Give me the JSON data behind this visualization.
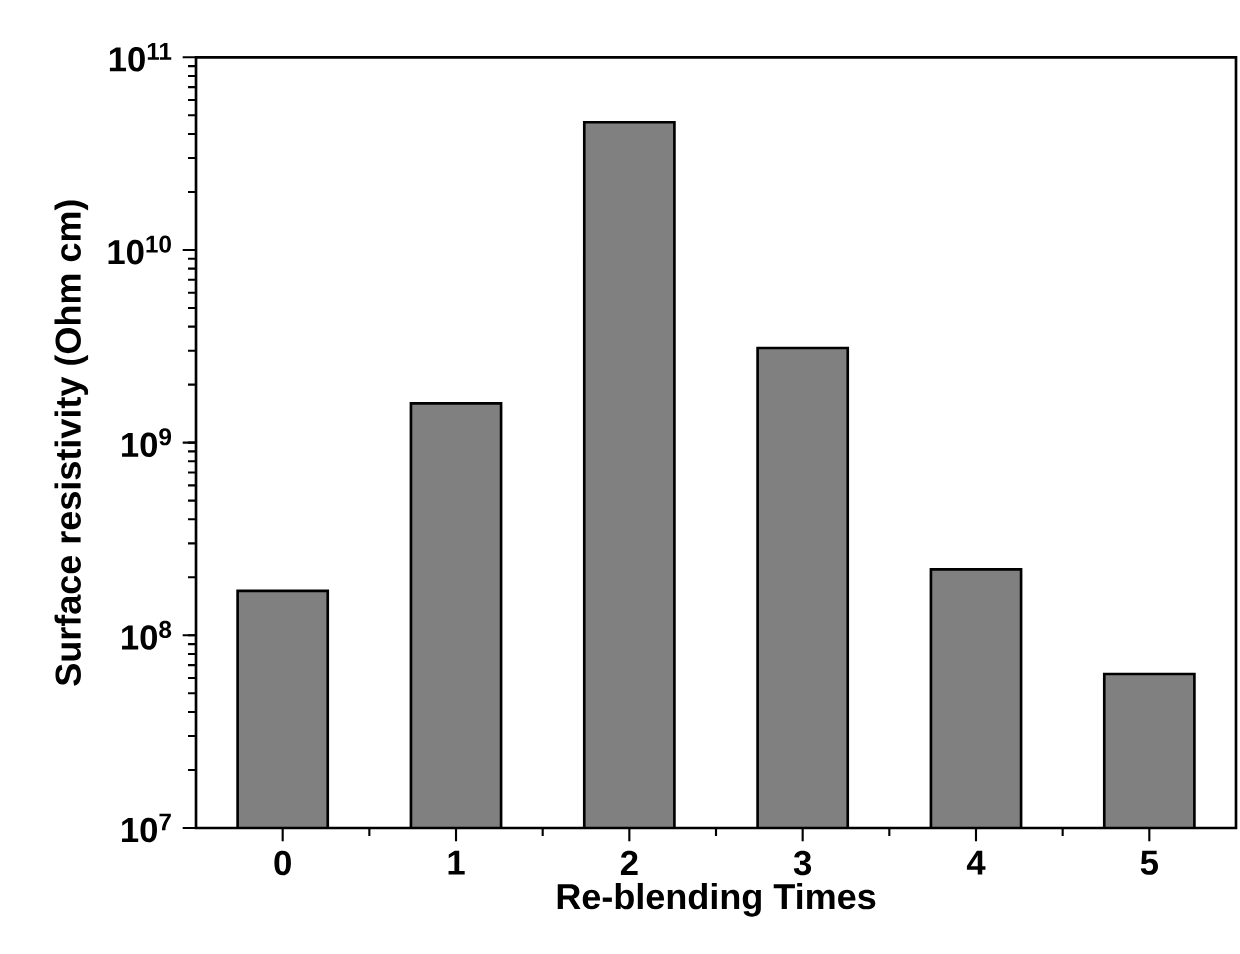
{
  "chart_data": {
    "type": "bar",
    "xlabel": "Re-blending Times",
    "ylabel": "Surface resistivity (Ohm cm)",
    "categories": [
      "0",
      "1",
      "2",
      "3",
      "4",
      "5"
    ],
    "values": [
      170000000.0,
      1600000000.0,
      46000000000.0,
      3100000000.0,
      220000000.0,
      63000000.0
    ],
    "color": "#808080",
    "log": true,
    "ylim": [
      10000000.0,
      100000000000.0
    ],
    "yticks": [
      {
        "value": 10000000.0,
        "label": "10$^{7}$"
      },
      {
        "value": 100000000.0,
        "label": "10$^{8}$"
      },
      {
        "value": 1000000000.0,
        "label": "10$^{9}$"
      },
      {
        "value": 10000000000.0,
        "label": "10$^{10}$"
      },
      {
        "value": 100000000000.0,
        "label": "10$^{11}$"
      }
    ],
    "grid": false
  }
}
